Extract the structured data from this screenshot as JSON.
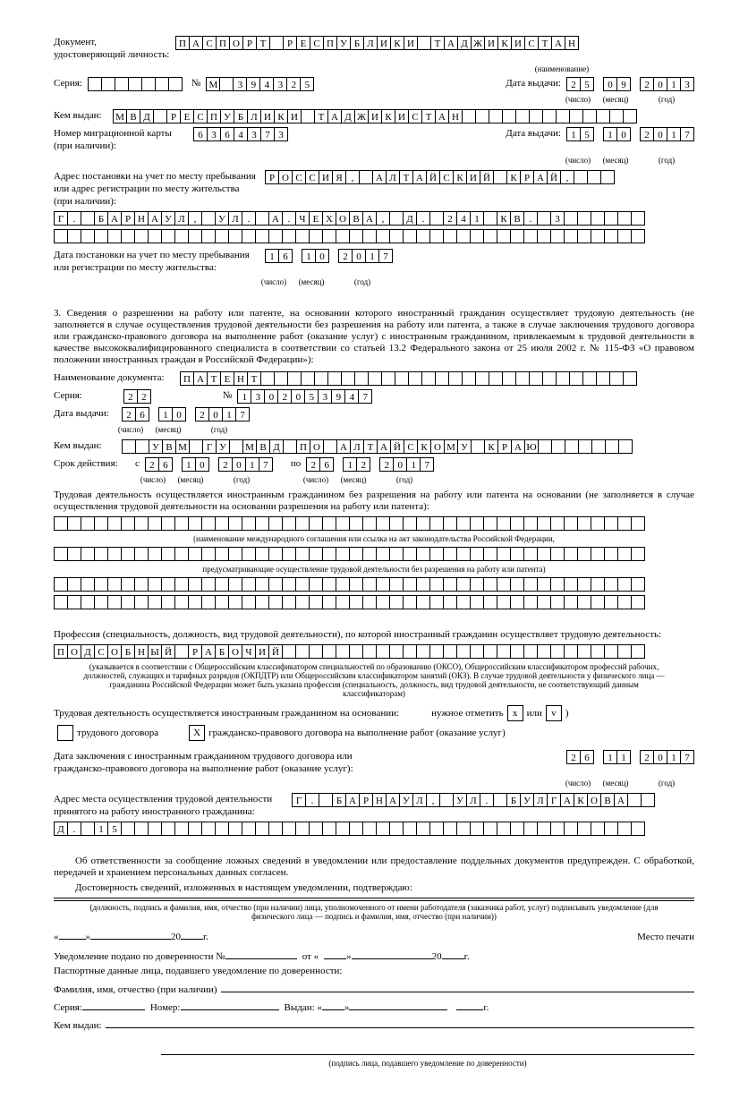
{
  "doc_label": "Документ, удостоверяющий личность:",
  "doc_name_cells": [
    "П",
    "А",
    "С",
    "П",
    "О",
    "Р",
    "Т",
    "",
    "Р",
    "Е",
    "С",
    "П",
    "У",
    "Б",
    "Л",
    "И",
    "К",
    "И",
    "",
    "Т",
    "А",
    "Д",
    "Ж",
    "И",
    "К",
    "И",
    "С",
    "Т",
    "А",
    "Н"
  ],
  "doc_name_sub": "(наименование)",
  "series_label": "Серия:",
  "series_cells": [
    "",
    "",
    "",
    "",
    "",
    "",
    ""
  ],
  "num_label": "№",
  "num_cells": [
    "М",
    "",
    "3",
    "9",
    "4",
    "3",
    "2",
    "5"
  ],
  "date_issue_label": "Дата выдачи:",
  "date_issue_day": [
    "2",
    "5"
  ],
  "date_issue_month": [
    "0",
    "9"
  ],
  "date_issue_year": [
    "2",
    "0",
    "1",
    "3"
  ],
  "sub_day": "(число)",
  "sub_month": "(месяц)",
  "sub_year": "(год)",
  "issued_by_label": "Кем выдан:",
  "issued_by_cells": [
    "М",
    "В",
    "Д",
    "",
    "Р",
    "Е",
    "С",
    "П",
    "У",
    "Б",
    "Л",
    "И",
    "К",
    "И",
    "",
    "Т",
    "А",
    "Д",
    "Ж",
    "И",
    "К",
    "И",
    "С",
    "Т",
    "А",
    "Н",
    "",
    "",
    "",
    "",
    "",
    "",
    "",
    "",
    "",
    "",
    "",
    "",
    ""
  ],
  "mig_card_label": "Номер миграционной карты (при наличии):",
  "mig_card_cells": [
    "6",
    "3",
    "6",
    "4",
    "3",
    "7",
    "3"
  ],
  "mig_date_label": "Дата выдачи:",
  "mig_day": [
    "1",
    "5"
  ],
  "mig_month": [
    "1",
    "0"
  ],
  "mig_year": [
    "2",
    "0",
    "1",
    "7"
  ],
  "addr_label": "Адрес постановки на учет по месту пребывания или адрес регистрации по месту жительства (при наличии):",
  "addr_line1": [
    "Р",
    "О",
    "С",
    "С",
    "И",
    "Я",
    ",",
    "",
    "А",
    "Л",
    "Т",
    "А",
    "Й",
    "С",
    "К",
    "И",
    "Й",
    "",
    "К",
    "Р",
    "А",
    "Й",
    ",",
    "",
    "",
    ""
  ],
  "addr_line2": [
    "Г",
    ".",
    "",
    "Б",
    "А",
    "Р",
    "Н",
    "А",
    "У",
    "Л",
    ",",
    "",
    "У",
    "Л",
    ".",
    "",
    "А",
    ".",
    "Ч",
    "Е",
    "Х",
    "О",
    "В",
    "А",
    ",",
    "",
    "Д",
    ".",
    "",
    "2",
    "4",
    "1",
    "",
    "К",
    "В",
    ".",
    "",
    "3",
    "",
    "",
    "",
    "",
    "",
    ""
  ],
  "addr_line3": [
    "",
    "",
    "",
    "",
    "",
    "",
    "",
    "",
    "",
    "",
    "",
    "",
    "",
    "",
    "",
    "",
    "",
    "",
    "",
    "",
    "",
    "",
    "",
    "",
    "",
    "",
    "",
    "",
    "",
    "",
    "",
    "",
    "",
    "",
    "",
    "",
    "",
    "",
    "",
    "",
    "",
    "",
    "",
    ""
  ],
  "reg_date_label": "Дата постановки на учет по месту пребывания или регистрации по месту жительства:",
  "reg_day": [
    "1",
    "6"
  ],
  "reg_month": [
    "1",
    "0"
  ],
  "reg_year": [
    "2",
    "0",
    "1",
    "7"
  ],
  "section3": "3. Сведения о разрешении на работу или патенте, на основании которого иностранный гражданин осуществляет трудовую деятельность (не заполняется в случае осуществления трудовой деятельности без разрешения на работу или патента, а также в случае заключения трудового договора или гражданско-правового договора на выполнение работ (оказание услуг) с иностранным гражданином, привлекаемым к трудовой деятельности в качестве высококвалифицированного специалиста в соответствии со статьей 13.2 Федерального закона от 25 июля 2002 г. № 115-ФЗ «О правовом положении иностранных граждан в Российской Федерации»):",
  "permit_name_label": "Наименование документа:",
  "permit_name_cells": [
    "П",
    "А",
    "Т",
    "Е",
    "Н",
    "Т",
    "",
    "",
    "",
    "",
    "",
    "",
    "",
    "",
    "",
    "",
    "",
    "",
    "",
    "",
    "",
    "",
    "",
    "",
    "",
    "",
    "",
    "",
    "",
    "",
    "",
    "",
    "",
    ""
  ],
  "permit_series_label": "Серия:",
  "permit_series": [
    "2",
    "2"
  ],
  "permit_num_label": "№",
  "permit_num": [
    "1",
    "3",
    "0",
    "2",
    "0",
    "5",
    "3",
    "9",
    "4",
    "7"
  ],
  "permit_date_label": "Дата выдачи:",
  "permit_day": [
    "2",
    "6"
  ],
  "permit_month": [
    "1",
    "0"
  ],
  "permit_year": [
    "2",
    "0",
    "1",
    "7"
  ],
  "permit_issued_label": "Кем выдан:",
  "permit_issued_cells": [
    "",
    "",
    "У",
    "В",
    "М",
    "",
    "Г",
    "У",
    "",
    "М",
    "В",
    "Д",
    "",
    "П",
    "О",
    "",
    "А",
    "Л",
    "Т",
    "А",
    "Й",
    "С",
    "К",
    "О",
    "М",
    "У",
    "",
    "К",
    "Р",
    "А",
    "Ю",
    "",
    "",
    "",
    "",
    "",
    "",
    ""
  ],
  "permit_term_label": "Срок действия:",
  "permit_from": "с",
  "permit_to": "по",
  "term_from_day": [
    "2",
    "6"
  ],
  "term_from_month": [
    "1",
    "0"
  ],
  "term_from_year": [
    "2",
    "0",
    "1",
    "7"
  ],
  "term_to_day": [
    "2",
    "6"
  ],
  "term_to_month": [
    "1",
    "2"
  ],
  "term_to_year": [
    "2",
    "0",
    "1",
    "7"
  ],
  "basis_para": "Трудовая деятельность осуществляется иностранным гражданином без разрешения на работу или патента на основании (не заполняется в случае осуществления трудовой деятельности на основании разрешения на работу или патента):",
  "empty_row": [
    "",
    "",
    "",
    "",
    "",
    "",
    "",
    "",
    "",
    "",
    "",
    "",
    "",
    "",
    "",
    "",
    "",
    "",
    "",
    "",
    "",
    "",
    "",
    "",
    "",
    "",
    "",
    "",
    "",
    "",
    "",
    "",
    "",
    "",
    "",
    "",
    "",
    "",
    "",
    "",
    "",
    "",
    "",
    ""
  ],
  "note1": "(наименование международного соглашения или ссылка на акт законодательства Российской Федерации,",
  "note2": "предусматривающие осуществление трудовой деятельности без разрешения на работу или патента)",
  "prof_para": "Профессия (специальность, должность, вид трудовой деятельности), по которой иностранный гражданин осуществляет трудовую деятельность:",
  "prof_cells": [
    "П",
    "О",
    "Д",
    "С",
    "О",
    "Б",
    "Н",
    "Ы",
    "Й",
    "",
    "Р",
    "А",
    "Б",
    "О",
    "Ч",
    "И",
    "Й",
    "",
    "",
    "",
    "",
    "",
    "",
    "",
    "",
    "",
    "",
    "",
    "",
    "",
    "",
    "",
    "",
    "",
    "",
    "",
    "",
    "",
    "",
    "",
    "",
    "",
    "",
    ""
  ],
  "prof_note": "(указывается в соответствии с Общероссийским классификатором специальностей по образованию (ОКСО), Общероссийским классификатором профессий рабочих, должностей, служащих и тарифных разрядов (ОКПДТР) или Общероссийским классификатором занятий (ОКЗ). В случае трудовой деятельности у физического лица — гражданина Российской Федерации может быть указана профессия (специальность, должность, вид трудовой деятельности, не соответствующий данным классификаторам)",
  "contract_basis": "Трудовая деятельность осуществляется иностранным гражданином на основании:",
  "mark_note": "нужное отметить",
  "or": "или",
  "mark_x": "x",
  "mark_v": "v",
  "labor_contract": "трудового договора",
  "civil_contract": "гражданско-правового договора на выполнение работ (оказание услуг)",
  "check_x": "X",
  "contract_date_label": "Дата заключения с иностранным гражданином трудового договора или гражданско-правового договора на выполнение работ (оказание услуг):",
  "contract_day": [
    "2",
    "6"
  ],
  "contract_month": [
    "1",
    "1"
  ],
  "contract_year": [
    "2",
    "0",
    "1",
    "7"
  ],
  "work_addr_label": "Адрес места осуществления трудовой деятельности принятого на работу иностранного гражданина:",
  "work_addr_line1": [
    "Г",
    ".",
    "",
    "Б",
    "А",
    "Р",
    "Н",
    "А",
    "У",
    "Л",
    ",",
    "",
    "У",
    "Л",
    ".",
    "",
    "Б",
    "У",
    "Л",
    "Г",
    "А",
    "К",
    "О",
    "В",
    "А",
    "",
    ""
  ],
  "work_addr_line2": [
    "Д",
    ".",
    "",
    "1",
    "5",
    "",
    "",
    "",
    "",
    "",
    "",
    "",
    "",
    "",
    "",
    "",
    "",
    "",
    "",
    "",
    "",
    "",
    "",
    "",
    "",
    "",
    "",
    "",
    "",
    "",
    "",
    "",
    "",
    "",
    "",
    "",
    "",
    "",
    "",
    "",
    "",
    "",
    "",
    ""
  ],
  "warn_para": "Об ответственности за сообщение ложных сведений в уведомлении или предоставление поддельных документов предупрежден. С обработкой, передачей и хранением персональных данных согласен.",
  "confirm_para": "Достоверность сведений, изложенных в настоящем уведомлении, подтверждаю:",
  "sig_note": "(должность, подпись и фамилия, имя, отчество (при наличии) лица, уполномоченного от имени работодателя (заказчика работ, услуг) подписывать уведомление (для физического лица — подпись и фамилия, имя, отчество (при наличии))",
  "date_tpl_open": "«",
  "date_tpl_close": "»",
  "year20": "20",
  "year_g": "г.",
  "stamp": "Место печати",
  "proxy_label": "Уведомление подано по доверенности №",
  "from_label": "от «",
  "passport_proxy": "Паспортные данные лица, подавшего уведомление по доверенности:",
  "fio_label": "Фамилия, имя, отчество (при наличии)",
  "pseries": "Серия:",
  "pnumber": "Номер:",
  "pissued": "Выдан: «",
  "pby": "Кем выдан:",
  "sig_proxy_note": "(подпись лица, подавшего уведомление по доверенности)"
}
